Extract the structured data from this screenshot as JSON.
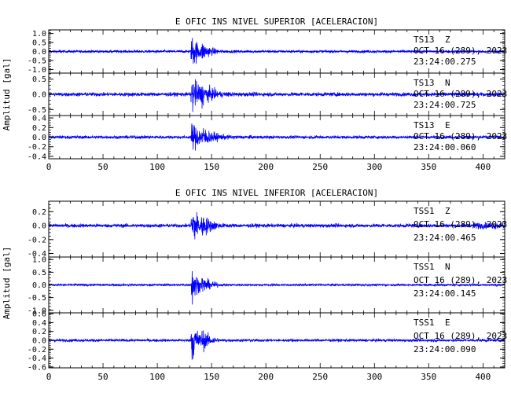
{
  "chart_data": [
    {
      "type": "line",
      "title": "E OFIC INS NIVEL SUPERIOR [ACELERACION]",
      "ylabel": "Amplitud [gal]",
      "xlabel": "",
      "xlim": [
        0,
        420
      ],
      "x_ticks": [
        0,
        50,
        100,
        150,
        200,
        250,
        300,
        350,
        400
      ],
      "line_color": "#0000ff",
      "grid": false,
      "panels": [
        {
          "station": "TS13",
          "component": "Z",
          "date": "OCT 16 (289), 2023",
          "time": "23:24:00.275",
          "ylim": [
            -1.2,
            1.2
          ],
          "y_ticks": [
            "1.0",
            "0.5",
            "0.0",
            "-0.5",
            "-1.0"
          ],
          "y_tick_values": [
            1.0,
            0.5,
            0.0,
            -0.5,
            -1.0
          ],
          "noise": 0.07,
          "event_start": 131,
          "event_peak": 1.05,
          "decay_s": 7
        },
        {
          "station": "TS13",
          "component": "N",
          "date": "OCT 16 (289), 2023",
          "time": "23:24:00.725",
          "ylim": [
            -0.7,
            0.7
          ],
          "y_ticks": [
            "0.5",
            "0.0",
            "-0.5"
          ],
          "y_tick_values": [
            0.5,
            0.0,
            -0.5
          ],
          "noise": 0.06,
          "event_start": 131,
          "event_peak": 0.6,
          "decay_s": 10
        },
        {
          "station": "TS13",
          "component": "E",
          "date": "OCT 16 (289), 2023",
          "time": "23:24:00.060",
          "ylim": [
            -0.45,
            0.45
          ],
          "y_ticks": [
            "0.4",
            "0.2",
            "0.0",
            "-0.2",
            "-0.4"
          ],
          "y_tick_values": [
            0.4,
            0.2,
            0.0,
            -0.2,
            -0.4
          ],
          "noise": 0.03,
          "event_start": 131,
          "event_peak": 0.3,
          "decay_s": 12
        }
      ]
    },
    {
      "type": "line",
      "title": "E OFIC INS NIVEL INFERIOR [ACELERACION]",
      "ylabel": "Amplitud [gal]",
      "xlabel": "",
      "xlim": [
        0,
        420
      ],
      "x_ticks": [
        0,
        50,
        100,
        150,
        200,
        250,
        300,
        350,
        400
      ],
      "line_color": "#0000ff",
      "grid": false,
      "panels": [
        {
          "station": "TSS1",
          "component": "Z",
          "date": "OCT 16 (289), 2023",
          "time": "23:24:00.465",
          "ylim": [
            -0.45,
            0.35
          ],
          "y_ticks": [
            "0.2",
            "0.0",
            "-0.2",
            "-0.4"
          ],
          "y_tick_values": [
            0.2,
            0.0,
            -0.2,
            -0.4
          ],
          "noise": 0.025,
          "event_start": 131,
          "event_peak": 0.32,
          "decay_s": 8
        },
        {
          "station": "TSS1",
          "component": "N",
          "date": "OCT 16 (289), 2023",
          "time": "23:24:00.145",
          "ylim": [
            -1.1,
            1.1
          ],
          "y_ticks": [
            "1.0",
            "0.5",
            "0.0",
            "-0.5",
            "-1.0"
          ],
          "y_tick_values": [
            1.0,
            0.5,
            0.0,
            -0.5,
            -1.0
          ],
          "noise": 0.04,
          "event_start": 131,
          "event_peak": 0.95,
          "decay_s": 5
        },
        {
          "station": "TSS1",
          "component": "E",
          "date": "OCT 16 (289), 2023",
          "time": "23:24:00.090",
          "ylim": [
            -0.62,
            0.62
          ],
          "y_ticks": [
            "0.6",
            "0.4",
            "0.2",
            "0.0",
            "-0.2",
            "-0.4",
            "-0.6"
          ],
          "y_tick_values": [
            0.6,
            0.4,
            0.2,
            0.0,
            -0.2,
            -0.4,
            -0.6
          ],
          "noise": 0.03,
          "event_start": 131,
          "event_peak": 0.55,
          "decay_s": 6
        }
      ]
    }
  ]
}
